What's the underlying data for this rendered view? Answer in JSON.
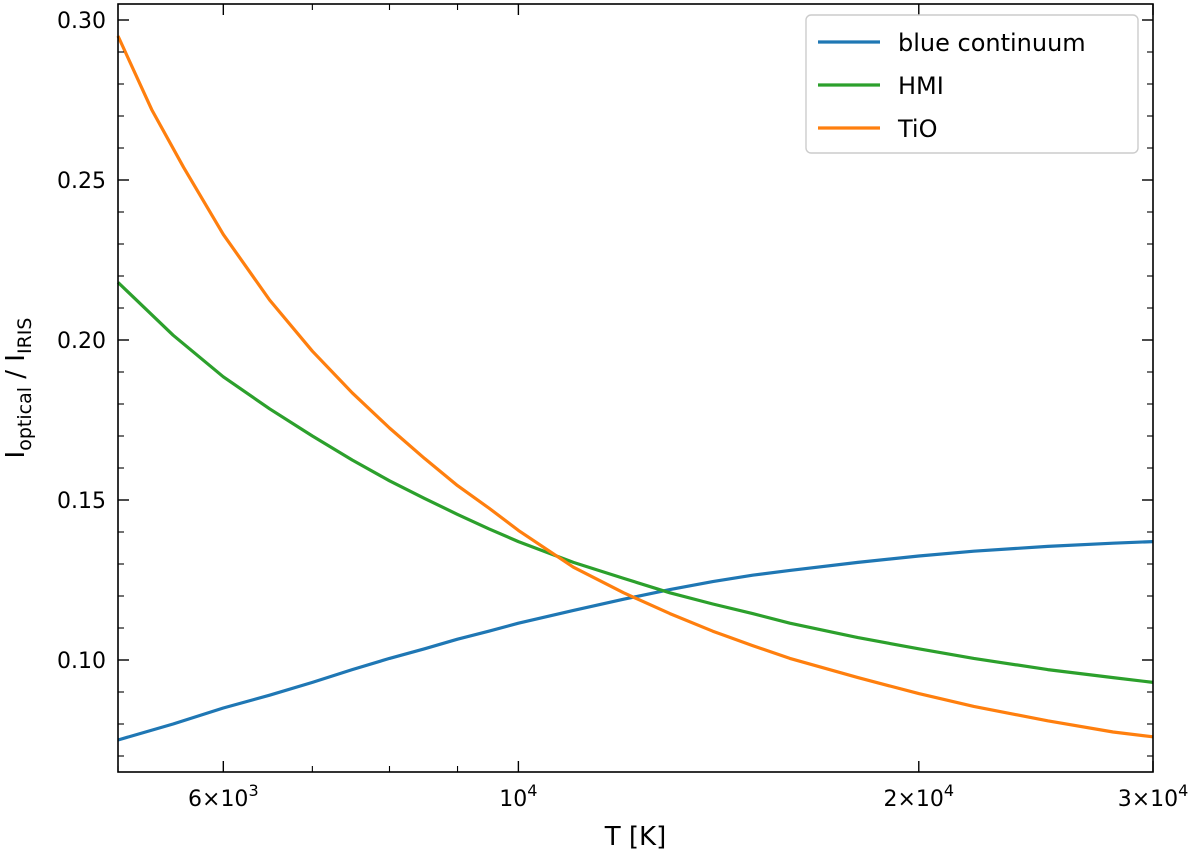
{
  "chart_data": {
    "type": "line",
    "xscale": "log",
    "xlabel": "T [K]",
    "ylabel_main": "I",
    "ylabel_numerator_sub": "optical",
    "ylabel_separator": " / I",
    "ylabel_denominator_sub": "IRIS",
    "xlim": [
      5000,
      30000
    ],
    "ylim": [
      0.065,
      0.305
    ],
    "x_ticks": [
      {
        "value": 6000,
        "mant": "6",
        "times": "×",
        "base": "10",
        "exp": "3"
      },
      {
        "value": 10000,
        "mant": "",
        "times": "",
        "base": "10",
        "exp": "4"
      },
      {
        "value": 20000,
        "mant": "2",
        "times": "×",
        "base": "10",
        "exp": "4"
      },
      {
        "value": 30000,
        "mant": "3",
        "times": "×",
        "base": "10",
        "exp": "4"
      }
    ],
    "x_minor_ticks": [
      5000,
      7000,
      8000,
      9000
    ],
    "y_ticks": [
      {
        "value": 0.1,
        "label": "0.10"
      },
      {
        "value": 0.15,
        "label": "0.15"
      },
      {
        "value": 0.2,
        "label": "0.20"
      },
      {
        "value": 0.25,
        "label": "0.25"
      },
      {
        "value": 0.3,
        "label": "0.30"
      }
    ],
    "y_minor_step": 0.01,
    "legend_position": "top-right",
    "grid": false,
    "series": [
      {
        "name": "blue continuum",
        "color": "#1f77b4",
        "x": [
          5000,
          5500,
          6000,
          6500,
          7000,
          7500,
          8000,
          8500,
          9000,
          9500,
          10000,
          11000,
          12000,
          13000,
          14000,
          15000,
          16000,
          18000,
          20000,
          22000,
          25000,
          28000,
          30000
        ],
        "y": [
          0.075,
          0.08,
          0.085,
          0.089,
          0.093,
          0.097,
          0.1005,
          0.1035,
          0.1065,
          0.109,
          0.1115,
          0.1155,
          0.119,
          0.122,
          0.1245,
          0.1265,
          0.128,
          0.1305,
          0.1325,
          0.134,
          0.1355,
          0.1365,
          0.137
        ]
      },
      {
        "name": "HMI",
        "color": "#2ca02c",
        "x": [
          5000,
          5500,
          6000,
          6500,
          7000,
          7500,
          8000,
          8500,
          9000,
          9500,
          10000,
          11000,
          12000,
          13000,
          14000,
          15000,
          16000,
          18000,
          20000,
          22000,
          25000,
          28000,
          30000
        ],
        "y": [
          0.218,
          0.2015,
          0.1885,
          0.1785,
          0.17,
          0.1625,
          0.156,
          0.1505,
          0.1455,
          0.141,
          0.137,
          0.1305,
          0.1255,
          0.121,
          0.1175,
          0.1145,
          0.1115,
          0.107,
          0.1035,
          0.1005,
          0.097,
          0.0945,
          0.093
        ]
      },
      {
        "name": "TiO",
        "color": "#ff7f0e",
        "x": [
          5000,
          5300,
          5600,
          6000,
          6500,
          7000,
          7500,
          8000,
          8500,
          9000,
          9500,
          10000,
          11000,
          12000,
          13000,
          14000,
          15000,
          16000,
          18000,
          20000,
          22000,
          25000,
          28000,
          30000
        ],
        "y": [
          0.295,
          0.272,
          0.254,
          0.233,
          0.2125,
          0.1965,
          0.1835,
          0.1725,
          0.163,
          0.1545,
          0.1475,
          0.1405,
          0.129,
          0.121,
          0.1145,
          0.109,
          0.1045,
          0.1005,
          0.0945,
          0.0895,
          0.0855,
          0.081,
          0.0775,
          0.076
        ]
      }
    ]
  }
}
